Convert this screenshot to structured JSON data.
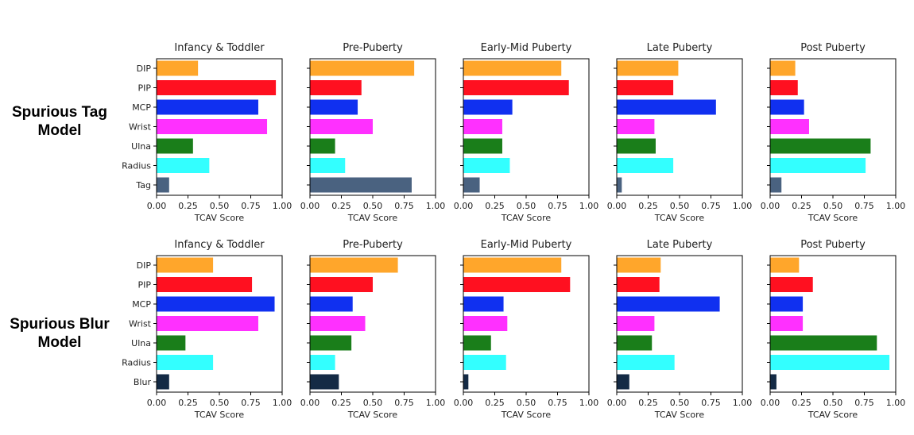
{
  "figure": {
    "row_labels": [
      {
        "line1": "Spurious Tag",
        "line2": "Model"
      },
      {
        "line1": "Spurious Blur",
        "line2": "Model"
      }
    ]
  },
  "chart_data": [
    {
      "type": "bar",
      "orientation": "horizontal",
      "row": "Spurious Tag Model",
      "title": "Infancy & Toddler",
      "xlabel": "TCAV Score",
      "xlim": [
        0,
        1
      ],
      "xticks": [
        "0.00",
        "0.25",
        "0.50",
        "0.75",
        "1.00"
      ],
      "categories": [
        "DIP",
        "PIP",
        "MCP",
        "Wrist",
        "Ulna",
        "Radius",
        "Tag"
      ],
      "values": [
        0.33,
        0.95,
        0.81,
        0.88,
        0.29,
        0.42,
        0.1
      ],
      "colors": [
        "#ffa62b",
        "#ff1020",
        "#1030f0",
        "#ff30ff",
        "#1a7e1a",
        "#33ffff",
        "#4a6280"
      ]
    },
    {
      "type": "bar",
      "orientation": "horizontal",
      "row": "Spurious Tag Model",
      "title": "Pre-Puberty",
      "xlabel": "TCAV Score",
      "xlim": [
        0,
        1
      ],
      "xticks": [
        "0.00",
        "0.25",
        "0.50",
        "0.75",
        "1.00"
      ],
      "categories": [
        "DIP",
        "PIP",
        "MCP",
        "Wrist",
        "Ulna",
        "Radius",
        "Tag"
      ],
      "values": [
        0.83,
        0.41,
        0.38,
        0.5,
        0.2,
        0.28,
        0.81
      ],
      "colors": [
        "#ffa62b",
        "#ff1020",
        "#1030f0",
        "#ff30ff",
        "#1a7e1a",
        "#33ffff",
        "#4a6280"
      ]
    },
    {
      "type": "bar",
      "orientation": "horizontal",
      "row": "Spurious Tag Model",
      "title": "Early-Mid Puberty",
      "xlabel": "TCAV Score",
      "xlim": [
        0,
        1
      ],
      "xticks": [
        "0.00",
        "0.25",
        "0.50",
        "0.75",
        "1.00"
      ],
      "categories": [
        "DIP",
        "PIP",
        "MCP",
        "Wrist",
        "Ulna",
        "Radius",
        "Tag"
      ],
      "values": [
        0.78,
        0.84,
        0.39,
        0.31,
        0.31,
        0.37,
        0.13
      ],
      "colors": [
        "#ffa62b",
        "#ff1020",
        "#1030f0",
        "#ff30ff",
        "#1a7e1a",
        "#33ffff",
        "#4a6280"
      ]
    },
    {
      "type": "bar",
      "orientation": "horizontal",
      "row": "Spurious Tag Model",
      "title": "Late Puberty",
      "xlabel": "TCAV Score",
      "xlim": [
        0,
        1
      ],
      "xticks": [
        "0.00",
        "0.25",
        "0.50",
        "0.75",
        "1.00"
      ],
      "categories": [
        "DIP",
        "PIP",
        "MCP",
        "Wrist",
        "Ulna",
        "Radius",
        "Tag"
      ],
      "values": [
        0.49,
        0.45,
        0.79,
        0.3,
        0.31,
        0.45,
        0.04
      ],
      "colors": [
        "#ffa62b",
        "#ff1020",
        "#1030f0",
        "#ff30ff",
        "#1a7e1a",
        "#33ffff",
        "#4a6280"
      ]
    },
    {
      "type": "bar",
      "orientation": "horizontal",
      "row": "Spurious Tag Model",
      "title": "Post Puberty",
      "xlabel": "TCAV Score",
      "xlim": [
        0,
        1
      ],
      "xticks": [
        "0.00",
        "0.25",
        "0.50",
        "0.75",
        "1.00"
      ],
      "categories": [
        "DIP",
        "PIP",
        "MCP",
        "Wrist",
        "Ulna",
        "Radius",
        "Tag"
      ],
      "values": [
        0.2,
        0.22,
        0.27,
        0.31,
        0.8,
        0.76,
        0.09
      ],
      "colors": [
        "#ffa62b",
        "#ff1020",
        "#1030f0",
        "#ff30ff",
        "#1a7e1a",
        "#33ffff",
        "#4a6280"
      ]
    },
    {
      "type": "bar",
      "orientation": "horizontal",
      "row": "Spurious Blur Model",
      "title": "Infancy & Toddler",
      "xlabel": "TCAV Score",
      "xlim": [
        0,
        1
      ],
      "xticks": [
        "0.00",
        "0.25",
        "0.50",
        "0.75",
        "1.00"
      ],
      "categories": [
        "DIP",
        "PIP",
        "MCP",
        "Wrist",
        "Ulna",
        "Radius",
        "Blur"
      ],
      "values": [
        0.45,
        0.76,
        0.94,
        0.81,
        0.23,
        0.45,
        0.1
      ],
      "colors": [
        "#ffa62b",
        "#ff1020",
        "#1030f0",
        "#ff30ff",
        "#1a7e1a",
        "#33ffff",
        "#142a45"
      ]
    },
    {
      "type": "bar",
      "orientation": "horizontal",
      "row": "Spurious Blur Model",
      "title": "Pre-Puberty",
      "xlabel": "TCAV Score",
      "xlim": [
        0,
        1
      ],
      "xticks": [
        "0.00",
        "0.25",
        "0.50",
        "0.75",
        "1.00"
      ],
      "categories": [
        "DIP",
        "PIP",
        "MCP",
        "Wrist",
        "Ulna",
        "Radius",
        "Blur"
      ],
      "values": [
        0.7,
        0.5,
        0.34,
        0.44,
        0.33,
        0.2,
        0.23
      ],
      "colors": [
        "#ffa62b",
        "#ff1020",
        "#1030f0",
        "#ff30ff",
        "#1a7e1a",
        "#33ffff",
        "#142a45"
      ]
    },
    {
      "type": "bar",
      "orientation": "horizontal",
      "row": "Spurious Blur Model",
      "title": "Early-Mid Puberty",
      "xlabel": "TCAV Score",
      "xlim": [
        0,
        1
      ],
      "xticks": [
        "0.00",
        "0.25",
        "0.50",
        "0.75",
        "1.00"
      ],
      "categories": [
        "DIP",
        "PIP",
        "MCP",
        "Wrist",
        "Ulna",
        "Radius",
        "Blur"
      ],
      "values": [
        0.78,
        0.85,
        0.32,
        0.35,
        0.22,
        0.34,
        0.04
      ],
      "colors": [
        "#ffa62b",
        "#ff1020",
        "#1030f0",
        "#ff30ff",
        "#1a7e1a",
        "#33ffff",
        "#142a45"
      ]
    },
    {
      "type": "bar",
      "orientation": "horizontal",
      "row": "Spurious Blur Model",
      "title": "Late Puberty",
      "xlabel": "TCAV Score",
      "xlim": [
        0,
        1
      ],
      "xticks": [
        "0.00",
        "0.25",
        "0.50",
        "0.75",
        "1.00"
      ],
      "categories": [
        "DIP",
        "PIP",
        "MCP",
        "Wrist",
        "Ulna",
        "Radius",
        "Blur"
      ],
      "values": [
        0.35,
        0.34,
        0.82,
        0.3,
        0.28,
        0.46,
        0.1
      ],
      "colors": [
        "#ffa62b",
        "#ff1020",
        "#1030f0",
        "#ff30ff",
        "#1a7e1a",
        "#33ffff",
        "#142a45"
      ]
    },
    {
      "type": "bar",
      "orientation": "horizontal",
      "row": "Spurious Blur Model",
      "title": "Post Puberty",
      "xlabel": "TCAV Score",
      "xlim": [
        0,
        1
      ],
      "xticks": [
        "0.00",
        "0.25",
        "0.50",
        "0.75",
        "1.00"
      ],
      "categories": [
        "DIP",
        "PIP",
        "MCP",
        "Wrist",
        "Ulna",
        "Radius",
        "Blur"
      ],
      "values": [
        0.23,
        0.34,
        0.26,
        0.26,
        0.85,
        0.95,
        0.05
      ],
      "colors": [
        "#ffa62b",
        "#ff1020",
        "#1030f0",
        "#ff30ff",
        "#1a7e1a",
        "#33ffff",
        "#142a45"
      ]
    }
  ]
}
